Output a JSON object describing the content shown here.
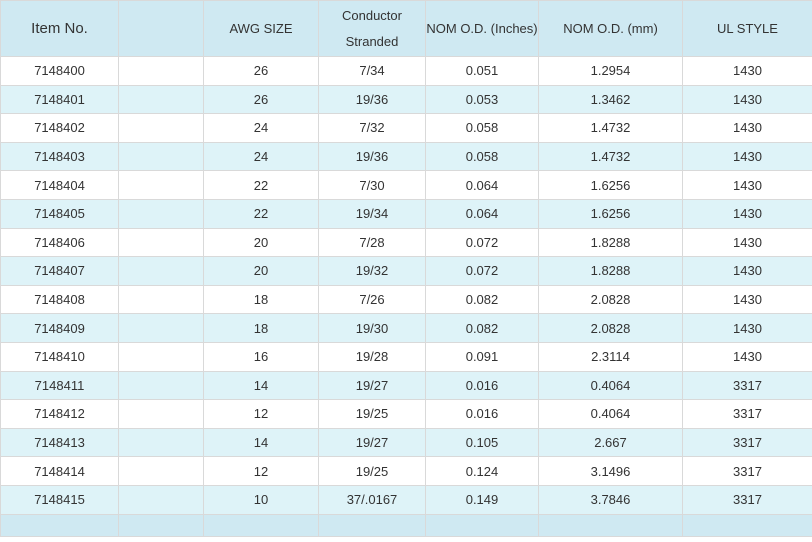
{
  "table": {
    "headers": [
      {
        "label": "Item No."
      },
      {
        "label": ""
      },
      {
        "label": "AWG SIZE"
      },
      {
        "line1": "Conductor",
        "line2": "Stranded"
      },
      {
        "label": "NOM O.D.  (Inches)"
      },
      {
        "label": "NOM O.D.  (mm)"
      },
      {
        "label": "UL STYLE"
      }
    ],
    "rows": [
      [
        "7148400",
        "",
        "26",
        "7/34",
        "0.051",
        "1.2954",
        "1430"
      ],
      [
        "7148401",
        "",
        "26",
        "19/36",
        "0.053",
        "1.3462",
        "1430"
      ],
      [
        "7148402",
        "",
        "24",
        "7/32",
        "0.058",
        "1.4732",
        "1430"
      ],
      [
        "7148403",
        "",
        "24",
        "19/36",
        "0.058",
        "1.4732",
        "1430"
      ],
      [
        "7148404",
        "",
        "22",
        "7/30",
        "0.064",
        "1.6256",
        "1430"
      ],
      [
        "7148405",
        "",
        "22",
        "19/34",
        "0.064",
        "1.6256",
        "1430"
      ],
      [
        "7148406",
        "",
        "20",
        "7/28",
        "0.072",
        "1.8288",
        "1430"
      ],
      [
        "7148407",
        "",
        "20",
        "19/32",
        "0.072",
        "1.8288",
        "1430"
      ],
      [
        "7148408",
        "",
        "18",
        "7/26",
        "0.082",
        "2.0828",
        "1430"
      ],
      [
        "7148409",
        "",
        "18",
        "19/30",
        "0.082",
        "2.0828",
        "1430"
      ],
      [
        "7148410",
        "",
        "16",
        "19/28",
        "0.091",
        "2.3114",
        "1430"
      ],
      [
        "7148411",
        "",
        "14",
        "19/27",
        "0.016",
        "0.4064",
        "3317"
      ],
      [
        "7148412",
        "",
        "12",
        "19/25",
        "0.016",
        "0.4064",
        "3317"
      ],
      [
        "7148413",
        "",
        "14",
        "19/27",
        "0.105",
        "2.667",
        "3317"
      ],
      [
        "7148414",
        "",
        "12",
        "19/25",
        "0.124",
        "3.1496",
        "3317"
      ],
      [
        "7148415",
        "",
        "10",
        "37/.0167",
        "0.149",
        "3.7846",
        "3317"
      ]
    ]
  },
  "colors": {
    "header_bg": "#cfe9f2",
    "row_bg": "#ffffff",
    "row_alt_bg": "#def3f8",
    "border": "#d9d9d9",
    "text": "#333333"
  }
}
